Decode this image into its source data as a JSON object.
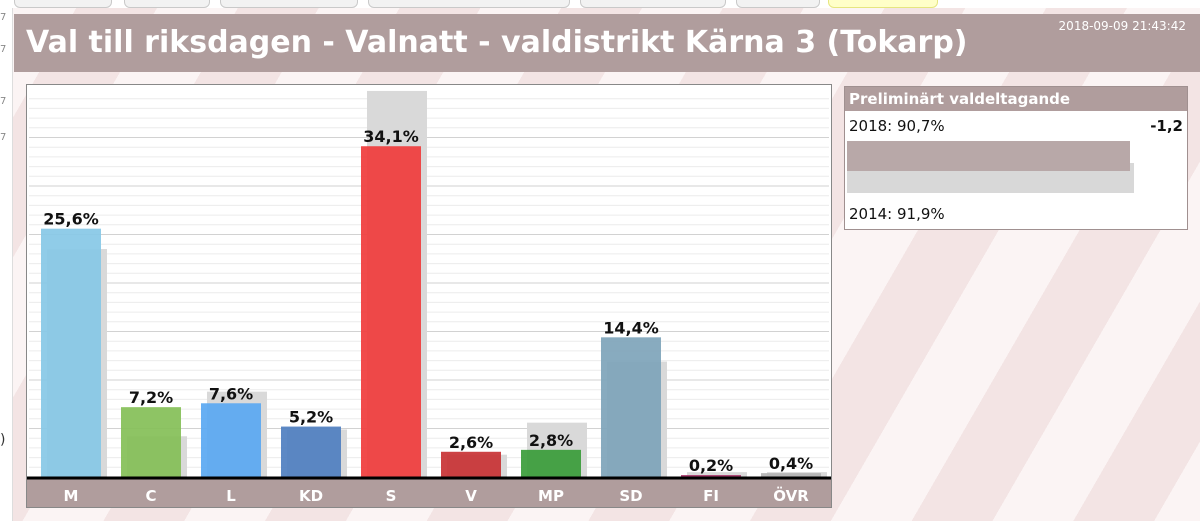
{
  "header": {
    "title": "Val till riksdagen - Valnatt - valdistrikt Kärna 3 (Tokarp)",
    "timestamp": "2018-09-09 21:43:42"
  },
  "turnout": {
    "title": "Preliminärt valdeltagande",
    "current_label": "2018: 90,7%",
    "current_value": 90.7,
    "previous_label": "2014: 91,9%",
    "previous_value": 91.9,
    "diff": "-1,2"
  },
  "chart_data": {
    "type": "bar",
    "categories": [
      "M",
      "C",
      "L",
      "KD",
      "S",
      "V",
      "MP",
      "SD",
      "FI",
      "ÖVR"
    ],
    "series": [
      {
        "values": [
          25.6,
          7.2,
          7.6,
          5.2,
          34.1,
          2.6,
          2.8,
          14.4,
          0.2,
          0.4
        ],
        "labels": [
          "25,6%",
          "7,2%",
          "7,6%",
          "5,2%",
          "34,1%",
          "2,6%",
          "2,8%",
          "14,4%",
          "0,2%",
          "0,4%"
        ]
      },
      {
        "values": [
          23.5,
          4.2,
          8.8,
          4.9,
          39.8,
          2.3,
          5.6,
          11.9,
          0.5,
          0.5
        ]
      }
    ],
    "colors": [
      "#87c8e6",
      "#84bf57",
      "#5aa8f2",
      "#4f7fc0",
      "#f03c3c",
      "#c83234",
      "#3a9c3a",
      "#7ea4ba",
      "#a83268",
      "#b3b3b3"
    ],
    "previous_color": "#d9d9d9",
    "ylim": [
      0,
      40
    ],
    "grid": true
  },
  "left_strip": {
    "marks": [
      "7",
      "7",
      "7",
      "7",
      ")"
    ]
  }
}
